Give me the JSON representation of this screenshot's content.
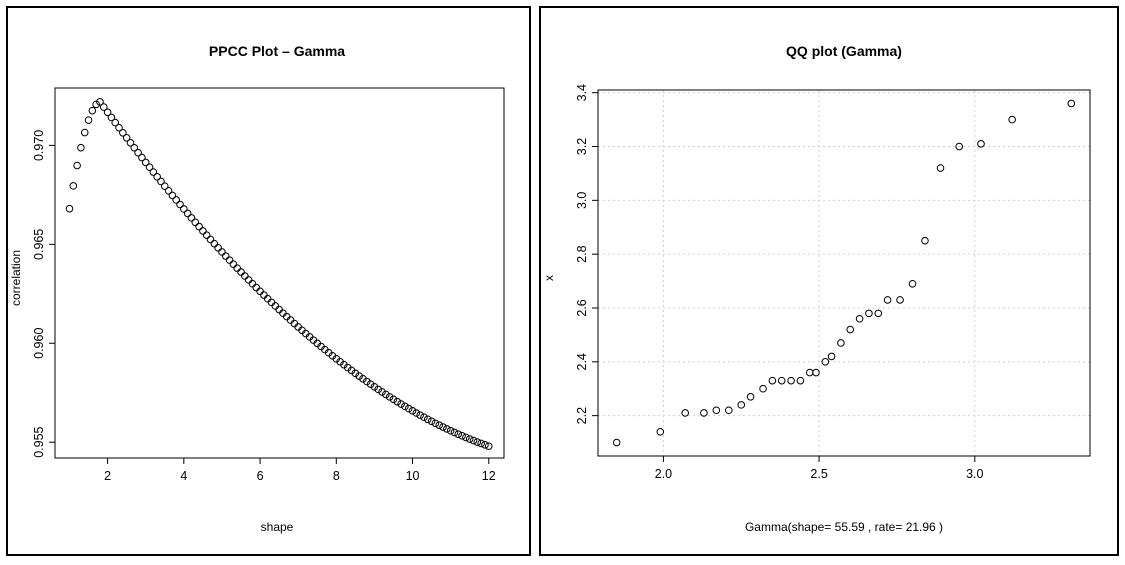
{
  "chart_data": [
    {
      "type": "scatter",
      "title": "PPCC Plot – Gamma",
      "xlabel": "shape",
      "ylabel": "correlation",
      "xlim": [
        0.62,
        12.4
      ],
      "ylim": [
        0.9542,
        0.9729
      ],
      "xticks": [
        "2",
        "4",
        "6",
        "8",
        "10",
        "12"
      ],
      "yticks": [
        "0.955",
        "0.960",
        "0.965",
        "0.970"
      ],
      "grid": false,
      "series": [
        {
          "x_start": 1.0,
          "x_step": 0.1,
          "peak_shape": 1.8,
          "peak_correlation": 0.9722,
          "y_at_x1": 0.9668,
          "y_at_x12": 0.9548
        }
      ]
    },
    {
      "type": "scatter",
      "title": "QQ plot (Gamma)",
      "xlabel": "Gamma(shape= 55.59 , rate= 21.96 )",
      "ylabel": "x",
      "xlim": [
        1.79,
        3.37
      ],
      "ylim": [
        2.05,
        3.41
      ],
      "xticks": [
        "2.0",
        "2.5",
        "3.0"
      ],
      "yticks": [
        "2.2",
        "2.4",
        "2.6",
        "2.8",
        "3.0",
        "3.2",
        "3.4"
      ],
      "grid": true,
      "series": [
        {
          "x": [
            1.85,
            1.99,
            2.07,
            2.13,
            2.17,
            2.21,
            2.25,
            2.28,
            2.32,
            2.35,
            2.38,
            2.41,
            2.44,
            2.47,
            2.49,
            2.52,
            2.54,
            2.57,
            2.6,
            2.63,
            2.66,
            2.69,
            2.72,
            2.76,
            2.8,
            2.84,
            2.89,
            2.95,
            3.02,
            3.12,
            3.31
          ],
          "y": [
            2.1,
            2.14,
            2.21,
            2.21,
            2.22,
            2.22,
            2.24,
            2.27,
            2.3,
            2.33,
            2.33,
            2.33,
            2.33,
            2.36,
            2.36,
            2.4,
            2.42,
            2.47,
            2.52,
            2.56,
            2.58,
            2.58,
            2.63,
            2.63,
            2.69,
            2.85,
            3.12,
            3.2,
            3.21,
            3.3,
            3.36
          ]
        }
      ]
    }
  ]
}
